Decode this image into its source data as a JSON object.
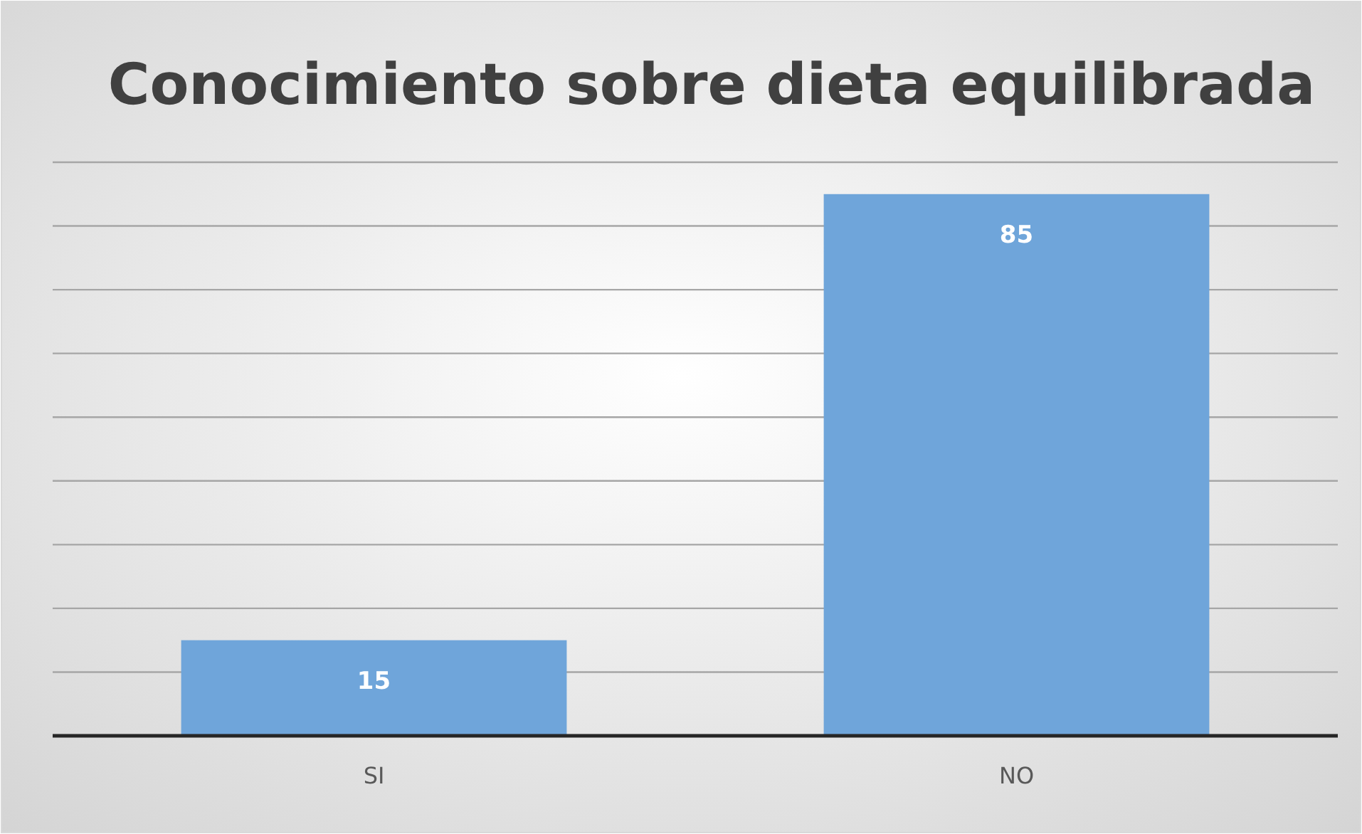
{
  "chart_data": {
    "type": "bar",
    "title": "Conocimiento sobre dieta equilibrada",
    "categories": [
      "SI",
      "NO"
    ],
    "values": [
      15,
      85
    ],
    "color": "#6fa5da",
    "ylim": [
      0,
      90
    ],
    "yticks": [
      {
        "value": 0,
        "label": null
      },
      {
        "value": 10,
        "label": null
      },
      {
        "value": 20,
        "label": null
      },
      {
        "value": 30,
        "label": null
      },
      {
        "value": 40,
        "label": null
      },
      {
        "value": 50,
        "label": null
      },
      {
        "value": 60,
        "label": null
      },
      {
        "value": 70,
        "label": null
      },
      {
        "value": 80,
        "label": null
      },
      {
        "value": 90,
        "label": null
      }
    ],
    "grid": "y",
    "tick_labels": "x",
    "data_labels": true
  }
}
